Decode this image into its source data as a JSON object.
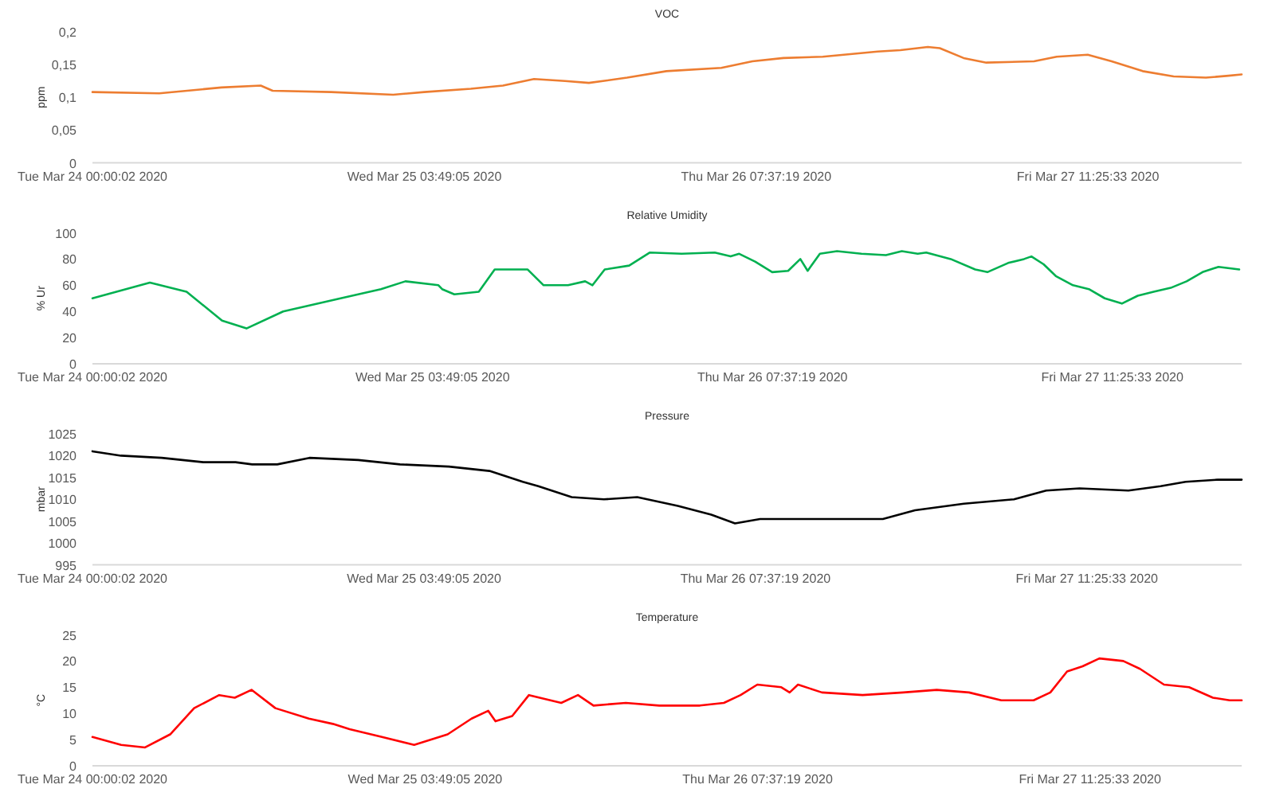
{
  "chart_data": [
    {
      "type": "line",
      "title": "VOC",
      "ylabel": "ppm",
      "xlim": [
        "2020-03-24T00:00",
        "2020-03-28T00:18"
      ],
      "ylim": [
        0,
        0.2
      ],
      "xticks": [
        {
          "value": "2020-03-24T00:00",
          "label": "Tue Mar 24 00:00:02 2020"
        },
        {
          "value": "2020-03-25T03:49",
          "label": "Wed Mar 25 03:49:05 2020"
        },
        {
          "value": "2020-03-26T07:37",
          "label": "Thu Mar 26 07:37:19 2020"
        },
        {
          "value": "2020-03-27T11:25",
          "label": "Fri Mar 27 11:25:33 2020"
        }
      ],
      "yticks": [
        0,
        {
          "value": 0.05,
          "label": "0,05"
        },
        {
          "value": 0.1,
          "label": "0,1"
        },
        {
          "value": 0.15,
          "label": "0,15"
        },
        {
          "value": 0.2,
          "label": "0,2"
        }
      ],
      "x": [
        "2020-03-24T00:00",
        "2020-03-24T05:36",
        "2020-03-24T10:48",
        "2020-03-24T14:06",
        "2020-03-24T15:06",
        "2020-03-24T20:00",
        "2020-03-25T01:12",
        "2020-03-25T03:48",
        "2020-03-25T07:42",
        "2020-03-25T10:24",
        "2020-03-25T13:00",
        "2020-03-25T15:36",
        "2020-03-25T17:36",
        "2020-03-25T20:48",
        "2020-03-26T00:06",
        "2020-03-26T04:42",
        "2020-03-26T07:18",
        "2020-03-26T09:54",
        "2020-03-26T13:12",
        "2020-03-26T17:48",
        "2020-03-26T19:42",
        "2020-03-26T22:00",
        "2020-03-26T23:00",
        "2020-03-27T01:00",
        "2020-03-27T02:54",
        "2020-03-27T06:54",
        "2020-03-27T08:48",
        "2020-03-27T11:24",
        "2020-03-27T13:24",
        "2020-03-27T16:00",
        "2020-03-27T18:36",
        "2020-03-27T21:18",
        "2020-03-27T23:12",
        "2020-03-28T00:18"
      ],
      "series": [
        {
          "color": "#ed7d31",
          "values": [
            0.108,
            0.106,
            0.115,
            0.118,
            0.11,
            0.108,
            0.104,
            0.108,
            0.113,
            0.118,
            0.128,
            0.125,
            0.122,
            0.13,
            0.14,
            0.145,
            0.155,
            0.16,
            0.162,
            0.17,
            0.172,
            0.177,
            0.175,
            0.16,
            0.153,
            0.155,
            0.162,
            0.165,
            0.155,
            0.14,
            0.132,
            0.13,
            0.133,
            0.135
          ]
        }
      ]
    },
    {
      "type": "line",
      "title": "Relative Umidity",
      "ylabel": "% Ur",
      "xlim": [
        "2020-03-24T00:00",
        "2020-03-27T22:00"
      ],
      "ylim": [
        0,
        100
      ],
      "xticks": [
        {
          "value": "2020-03-24T00:00",
          "label": "Tue Mar 24 00:00:02 2020"
        },
        {
          "value": "2020-03-25T03:49",
          "label": "Wed Mar 25 03:49:05 2020"
        },
        {
          "value": "2020-03-26T07:37",
          "label": "Thu Mar 26 07:37:19 2020"
        },
        {
          "value": "2020-03-27T11:25",
          "label": "Fri Mar 27 11:25:33 2020"
        }
      ],
      "yticks": [
        0,
        20,
        40,
        60,
        80,
        100
      ],
      "x": [
        "2020-03-24T00:00",
        "2020-03-24T04:42",
        "2020-03-24T07:42",
        "2020-03-24T10:36",
        "2020-03-24T12:36",
        "2020-03-24T15:36",
        "2020-03-24T20:18",
        "2020-03-24T23:36",
        "2020-03-25T01:36",
        "2020-03-25T04:18",
        "2020-03-25T04:36",
        "2020-03-25T05:36",
        "2020-03-25T07:36",
        "2020-03-25T08:54",
        "2020-03-25T11:36",
        "2020-03-25T12:54",
        "2020-03-25T14:54",
        "2020-03-25T16:18",
        "2020-03-25T16:54",
        "2020-03-25T17:54",
        "2020-03-25T19:54",
        "2020-03-25T21:36",
        "2020-03-26T00:12",
        "2020-03-26T02:54",
        "2020-03-26T04:12",
        "2020-03-26T04:54",
        "2020-03-26T06:12",
        "2020-03-26T07:36",
        "2020-03-26T08:54",
        "2020-03-26T09:54",
        "2020-03-26T10:30",
        "2020-03-26T11:30",
        "2020-03-26T12:54",
        "2020-03-26T14:54",
        "2020-03-26T16:54",
        "2020-03-26T18:12",
        "2020-03-26T19:30",
        "2020-03-26T20:12",
        "2020-03-26T22:12",
        "2020-03-27T00:12",
        "2020-03-27T01:12",
        "2020-03-27T02:54",
        "2020-03-27T04:12",
        "2020-03-27T04:48",
        "2020-03-27T05:48",
        "2020-03-27T06:48",
        "2020-03-27T08:12",
        "2020-03-27T09:30",
        "2020-03-27T10:48",
        "2020-03-27T12:12",
        "2020-03-27T13:30",
        "2020-03-27T14:48",
        "2020-03-27T16:12",
        "2020-03-27T17:30",
        "2020-03-27T18:48",
        "2020-03-27T20:06",
        "2020-03-27T21:48"
      ],
      "series": [
        {
          "color": "#00b050",
          "values": [
            50,
            62,
            55,
            33,
            27,
            40,
            50,
            57,
            63,
            60,
            57,
            53,
            55,
            72,
            72,
            60,
            60,
            63,
            60,
            72,
            75,
            85,
            84,
            85,
            82,
            84,
            78,
            70,
            71,
            80,
            71,
            84,
            86,
            84,
            83,
            86,
            84,
            85,
            80,
            72,
            70,
            77,
            80,
            82,
            76,
            67,
            60,
            57,
            50,
            46,
            52,
            55,
            58,
            63,
            70,
            74,
            72
          ]
        }
      ]
    },
    {
      "type": "line",
      "title": "Pressure",
      "ylabel": "mbar",
      "xlim": [
        "2020-03-24T00:00",
        "2020-03-28T00:24"
      ],
      "ylim": [
        995,
        1025
      ],
      "xticks": [
        {
          "value": "2020-03-24T00:00",
          "label": "Tue Mar 24 00:00:02 2020"
        },
        {
          "value": "2020-03-25T03:49",
          "label": "Wed Mar 25 03:49:05 2020"
        },
        {
          "value": "2020-03-26T07:37",
          "label": "Thu Mar 26 07:37:19 2020"
        },
        {
          "value": "2020-03-27T11:25",
          "label": "Fri Mar 27 11:25:33 2020"
        }
      ],
      "yticks": [
        995,
        1000,
        1005,
        1010,
        1015,
        1020,
        1025
      ],
      "x": [
        "2020-03-24T00:00",
        "2020-03-24T02:24",
        "2020-03-24T05:48",
        "2020-03-24T09:18",
        "2020-03-24T12:00",
        "2020-03-24T13:24",
        "2020-03-24T15:30",
        "2020-03-24T18:12",
        "2020-03-24T22:18",
        "2020-03-25T01:48",
        "2020-03-25T05:54",
        "2020-03-25T09:18",
        "2020-03-25T12:06",
        "2020-03-25T13:24",
        "2020-03-25T16:12",
        "2020-03-25T18:54",
        "2020-03-25T21:42",
        "2020-03-26T01:06",
        "2020-03-26T03:54",
        "2020-03-26T05:54",
        "2020-03-26T08:00",
        "2020-03-26T12:48",
        "2020-03-26T18:18",
        "2020-03-26T21:00",
        "2020-03-27T01:06",
        "2020-03-27T05:18",
        "2020-03-27T08:00",
        "2020-03-27T10:48",
        "2020-03-27T14:54",
        "2020-03-27T17:36",
        "2020-03-27T19:42",
        "2020-03-27T22:24",
        "2020-03-28T00:24"
      ],
      "series": [
        {
          "color": "#000000",
          "values": [
            1021,
            1020,
            1019.5,
            1018.5,
            1018.5,
            1018,
            1018,
            1019.5,
            1019,
            1018,
            1017.5,
            1016.5,
            1014,
            1013,
            1010.5,
            1010,
            1010.5,
            1008.5,
            1006.5,
            1004.5,
            1005.5,
            1005.5,
            1005.5,
            1007.5,
            1009,
            1010,
            1012,
            1012.5,
            1012,
            1013,
            1014,
            1014.5,
            1014.5
          ]
        }
      ]
    },
    {
      "type": "line",
      "title": "Temperature",
      "ylabel": "°C",
      "xlim": [
        "2020-03-24T00:00",
        "2020-03-28T00:06"
      ],
      "ylim": [
        0,
        25
      ],
      "xticks": [
        {
          "value": "2020-03-24T00:00",
          "label": "Tue Mar 24 00:00:02 2020"
        },
        {
          "value": "2020-03-25T03:49",
          "label": "Wed Mar 25 03:49:05 2020"
        },
        {
          "value": "2020-03-26T07:37",
          "label": "Thu Mar 26 07:37:19 2020"
        },
        {
          "value": "2020-03-27T11:25",
          "label": "Fri Mar 27 11:25:33 2020"
        }
      ],
      "yticks": [
        0,
        5,
        10,
        15,
        20,
        25
      ],
      "x": [
        "2020-03-24T00:00",
        "2020-03-24T02:24",
        "2020-03-24T04:24",
        "2020-03-24T06:30",
        "2020-03-24T08:30",
        "2020-03-24T10:36",
        "2020-03-24T11:54",
        "2020-03-24T13:18",
        "2020-03-24T15:18",
        "2020-03-24T18:06",
        "2020-03-24T20:06",
        "2020-03-24T21:30",
        "2020-03-25T00:12",
        "2020-03-25T02:54",
        "2020-03-25T05:42",
        "2020-03-25T07:42",
        "2020-03-25T09:06",
        "2020-03-25T09:42",
        "2020-03-25T11:06",
        "2020-03-25T12:30",
        "2020-03-25T15:12",
        "2020-03-25T16:36",
        "2020-03-25T17:54",
        "2020-03-25T20:36",
        "2020-03-25T23:24",
        "2020-03-26T02:48",
        "2020-03-26T04:48",
        "2020-03-26T06:12",
        "2020-03-26T07:36",
        "2020-03-26T09:36",
        "2020-03-26T10:18",
        "2020-03-26T11:00",
        "2020-03-26T13:00",
        "2020-03-26T16:24",
        "2020-03-26T19:48",
        "2020-03-26T22:36",
        "2020-03-27T01:18",
        "2020-03-27T04:00",
        "2020-03-27T06:42",
        "2020-03-27T08:06",
        "2020-03-27T09:30",
        "2020-03-27T10:48",
        "2020-03-27T12:12",
        "2020-03-27T14:12",
        "2020-03-27T15:36",
        "2020-03-27T17:36",
        "2020-03-27T19:42",
        "2020-03-27T21:42",
        "2020-03-27T23:06",
        "2020-03-28T00:06"
      ],
      "series": [
        {
          "color": "#ff0000",
          "values": [
            5.5,
            4,
            3.5,
            6,
            11,
            13.5,
            13,
            14.5,
            11,
            9,
            8,
            7,
            5.5,
            4,
            6,
            9,
            10.5,
            8.5,
            9.5,
            13.5,
            12,
            13.5,
            11.5,
            12,
            11.5,
            11.5,
            12,
            13.5,
            15.5,
            15,
            14,
            15.5,
            14,
            13.5,
            14,
            14.5,
            14,
            12.5,
            12.5,
            14,
            18,
            19,
            20.5,
            20,
            18.5,
            15.5,
            15,
            13,
            12.5,
            12.5
          ]
        }
      ]
    }
  ]
}
